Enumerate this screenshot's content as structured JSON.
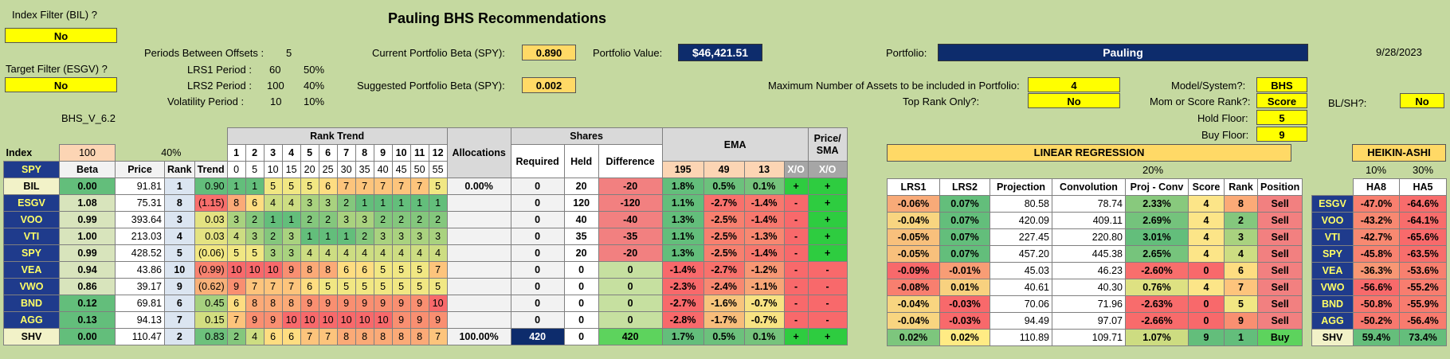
{
  "title": "Pauling BHS Recommendations",
  "date": "9/28/2023",
  "index_filter": {
    "label": "Index Filter (BIL) ?",
    "value": "No"
  },
  "target_filter": {
    "label": "Target Filter (ESGV) ?",
    "value": "No"
  },
  "version": "BHS_V_6.2",
  "periods": {
    "offsets_label": "Periods Between Offsets :",
    "offsets_value": "5",
    "lrs1_label": "LRS1 Period :",
    "lrs1_value": "60",
    "lrs1_pct": "50%",
    "lrs2_label": "LRS2 Period :",
    "lrs2_value": "100",
    "lrs2_pct": "40%",
    "vol_label": "Volatility Period :",
    "vol_value": "10",
    "vol_pct": "10%"
  },
  "current_beta": {
    "label": "Current Portfolio Beta (SPY):",
    "value": "0.890"
  },
  "suggested_beta": {
    "label": "Suggested Portfolio Beta (SPY):",
    "value": "0.002"
  },
  "portfolio_value": {
    "label": "Portfolio Value:",
    "value": "$46,421.51"
  },
  "portfolio": {
    "label": "Portfolio:",
    "value": "Pauling"
  },
  "max_assets": {
    "label": "Maximum Number of Assets to be included in Portfolio:",
    "value": "4"
  },
  "top_rank": {
    "label": "Top Rank Only?:",
    "value": "No"
  },
  "model": {
    "label": "Model/System?:",
    "value": "BHS"
  },
  "mom_score": {
    "label": "Mom or Score Rank?:",
    "value": "Score"
  },
  "hold_floor": {
    "label": "Hold Floor:",
    "value": "5"
  },
  "buy_floor": {
    "label": "Buy Floor:",
    "value": "9"
  },
  "blsh": {
    "label": "BL/SH?:",
    "value": "No"
  },
  "index_row": {
    "label": "Index",
    "value": "100",
    "pct": "40%"
  },
  "main_table": {
    "rank_trend_title": "Rank Trend",
    "trend_nums": [
      "1",
      "2",
      "3",
      "4",
      "5",
      "6",
      "7",
      "8",
      "9",
      "10",
      "11",
      "12"
    ],
    "trend_offsets": [
      "0",
      "5",
      "10",
      "15",
      "20",
      "25",
      "30",
      "35",
      "40",
      "45",
      "50",
      "55"
    ],
    "allocations_header": "Allocations",
    "shares_header": "Shares",
    "ema_header": "EMA",
    "price_sma_header": "Price/ SMA",
    "col_headers": [
      "SPY",
      "Beta",
      "Price",
      "Rank",
      "Trend"
    ],
    "shares_cols": [
      "Required",
      "Held",
      "Difference"
    ],
    "ema_cols": [
      "195",
      "49",
      "13",
      "X/O"
    ],
    "sma_col": "X/O",
    "rows": [
      {
        "ticker": "BIL",
        "beta": "0.00",
        "price": "91.81",
        "rank": "1",
        "trend": "0.90",
        "rt": [
          "1",
          "1",
          "5",
          "5",
          "5",
          "6",
          "7",
          "7",
          "7",
          "7",
          "7",
          "5"
        ],
        "alloc": "0.00%",
        "req": "0",
        "held": "20",
        "diff": "-20",
        "e195": "1.8%",
        "e49": "0.5%",
        "e13": "0.1%",
        "xo": "+",
        "sma": "+"
      },
      {
        "ticker": "ESGV",
        "beta": "1.08",
        "price": "75.31",
        "rank": "8",
        "trend": "(1.15)",
        "rt": [
          "8",
          "6",
          "4",
          "4",
          "3",
          "3",
          "2",
          "1",
          "1",
          "1",
          "1",
          "1"
        ],
        "alloc": "",
        "req": "0",
        "held": "120",
        "diff": "-120",
        "e195": "1.1%",
        "e49": "-2.7%",
        "e13": "-1.4%",
        "xo": "-",
        "sma": "+"
      },
      {
        "ticker": "VOO",
        "beta": "0.99",
        "price": "393.64",
        "rank": "3",
        "trend": "0.03",
        "rt": [
          "3",
          "2",
          "1",
          "1",
          "2",
          "2",
          "3",
          "3",
          "2",
          "2",
          "2",
          "2"
        ],
        "alloc": "",
        "req": "0",
        "held": "40",
        "diff": "-40",
        "e195": "1.3%",
        "e49": "-2.5%",
        "e13": "-1.4%",
        "xo": "-",
        "sma": "+"
      },
      {
        "ticker": "VTI",
        "beta": "1.00",
        "price": "213.03",
        "rank": "4",
        "trend": "0.03",
        "rt": [
          "4",
          "3",
          "2",
          "3",
          "1",
          "1",
          "1",
          "2",
          "3",
          "3",
          "3",
          "3"
        ],
        "alloc": "",
        "req": "0",
        "held": "35",
        "diff": "-35",
        "e195": "1.1%",
        "e49": "-2.5%",
        "e13": "-1.3%",
        "xo": "-",
        "sma": "+"
      },
      {
        "ticker": "SPY",
        "beta": "0.99",
        "price": "428.52",
        "rank": "5",
        "trend": "(0.06)",
        "rt": [
          "5",
          "5",
          "3",
          "3",
          "4",
          "4",
          "4",
          "4",
          "4",
          "4",
          "4",
          "4"
        ],
        "alloc": "",
        "req": "0",
        "held": "20",
        "diff": "-20",
        "e195": "1.3%",
        "e49": "-2.5%",
        "e13": "-1.4%",
        "xo": "-",
        "sma": "+"
      },
      {
        "ticker": "VEA",
        "beta": "0.94",
        "price": "43.86",
        "rank": "10",
        "trend": "(0.99)",
        "rt": [
          "10",
          "10",
          "10",
          "9",
          "8",
          "8",
          "6",
          "6",
          "5",
          "5",
          "5",
          "7"
        ],
        "alloc": "",
        "req": "0",
        "held": "0",
        "diff": "0",
        "e195": "-1.4%",
        "e49": "-2.7%",
        "e13": "-1.2%",
        "xo": "-",
        "sma": "-"
      },
      {
        "ticker": "VWO",
        "beta": "0.86",
        "price": "39.17",
        "rank": "9",
        "trend": "(0.62)",
        "rt": [
          "9",
          "7",
          "7",
          "7",
          "6",
          "5",
          "5",
          "5",
          "5",
          "5",
          "5",
          "5"
        ],
        "alloc": "",
        "req": "0",
        "held": "0",
        "diff": "0",
        "e195": "-2.3%",
        "e49": "-2.4%",
        "e13": "-1.1%",
        "xo": "-",
        "sma": "-"
      },
      {
        "ticker": "BND",
        "beta": "0.12",
        "price": "69.81",
        "rank": "6",
        "trend": "0.45",
        "rt": [
          "6",
          "8",
          "8",
          "8",
          "9",
          "9",
          "9",
          "9",
          "9",
          "9",
          "9",
          "10"
        ],
        "alloc": "",
        "req": "0",
        "held": "0",
        "diff": "0",
        "e195": "-2.7%",
        "e49": "-1.6%",
        "e13": "-0.7%",
        "xo": "-",
        "sma": "-"
      },
      {
        "ticker": "AGG",
        "beta": "0.13",
        "price": "94.13",
        "rank": "7",
        "trend": "0.15",
        "rt": [
          "7",
          "9",
          "9",
          "10",
          "10",
          "10",
          "10",
          "10",
          "10",
          "9",
          "9",
          "9"
        ],
        "alloc": "",
        "req": "0",
        "held": "0",
        "diff": "0",
        "e195": "-2.8%",
        "e49": "-1.7%",
        "e13": "-0.7%",
        "xo": "-",
        "sma": "-"
      },
      {
        "ticker": "SHV",
        "beta": "0.00",
        "price": "110.47",
        "rank": "2",
        "trend": "0.83",
        "rt": [
          "2",
          "4",
          "6",
          "6",
          "7",
          "7",
          "8",
          "8",
          "8",
          "8",
          "8",
          "7"
        ],
        "alloc": "100.00%",
        "req": "420",
        "held": "0",
        "diff": "420",
        "e195": "1.7%",
        "e49": "0.5%",
        "e13": "0.1%",
        "xo": "+",
        "sma": "+"
      }
    ]
  },
  "lr_table": {
    "title": "LINEAR REGRESSION",
    "pct": "20%",
    "cols": [
      "LRS1",
      "LRS2",
      "Projection",
      "Convolution",
      "Proj - Conv",
      "Score",
      "Rank",
      "Position"
    ],
    "rows": [
      {
        "lrs1": "-0.06%",
        "lrs2": "0.07%",
        "proj": "80.58",
        "conv": "78.74",
        "pc": "2.33%",
        "score": "4",
        "rank": "8",
        "pos": "Sell"
      },
      {
        "lrs1": "-0.04%",
        "lrs2": "0.07%",
        "proj": "420.09",
        "conv": "409.11",
        "pc": "2.69%",
        "score": "4",
        "rank": "2",
        "pos": "Sell"
      },
      {
        "lrs1": "-0.05%",
        "lrs2": "0.07%",
        "proj": "227.45",
        "conv": "220.80",
        "pc": "3.01%",
        "score": "4",
        "rank": "3",
        "pos": "Sell"
      },
      {
        "lrs1": "-0.05%",
        "lrs2": "0.07%",
        "proj": "457.20",
        "conv": "445.38",
        "pc": "2.65%",
        "score": "4",
        "rank": "4",
        "pos": "Sell"
      },
      {
        "lrs1": "-0.09%",
        "lrs2": "-0.01%",
        "proj": "45.03",
        "conv": "46.23",
        "pc": "-2.60%",
        "score": "0",
        "rank": "6",
        "pos": "Sell"
      },
      {
        "lrs1": "-0.08%",
        "lrs2": "0.01%",
        "proj": "40.61",
        "conv": "40.30",
        "pc": "0.76%",
        "score": "4",
        "rank": "7",
        "pos": "Sell"
      },
      {
        "lrs1": "-0.04%",
        "lrs2": "-0.03%",
        "proj": "70.06",
        "conv": "71.96",
        "pc": "-2.63%",
        "score": "0",
        "rank": "5",
        "pos": "Sell"
      },
      {
        "lrs1": "-0.04%",
        "lrs2": "-0.03%",
        "proj": "94.49",
        "conv": "97.07",
        "pc": "-2.66%",
        "score": "0",
        "rank": "9",
        "pos": "Sell"
      },
      {
        "lrs1": "0.02%",
        "lrs2": "0.02%",
        "proj": "110.89",
        "conv": "109.71",
        "pc": "1.07%",
        "score": "9",
        "rank": "1",
        "pos": "Buy"
      }
    ]
  },
  "ha_table": {
    "title": "HEIKIN-ASHI",
    "pcts": [
      "10%",
      "30%"
    ],
    "cols": [
      "HA8",
      "HA5"
    ],
    "rows": [
      {
        "ticker": "ESGV",
        "ha8": "-47.0%",
        "ha5": "-64.6%"
      },
      {
        "ticker": "VOO",
        "ha8": "-43.2%",
        "ha5": "-64.1%"
      },
      {
        "ticker": "VTI",
        "ha8": "-42.7%",
        "ha5": "-65.6%"
      },
      {
        "ticker": "SPY",
        "ha8": "-45.8%",
        "ha5": "-63.5%"
      },
      {
        "ticker": "VEA",
        "ha8": "-36.3%",
        "ha5": "-53.6%"
      },
      {
        "ticker": "VWO",
        "ha8": "-56.6%",
        "ha5": "-55.2%"
      },
      {
        "ticker": "BND",
        "ha8": "-50.8%",
        "ha5": "-55.9%"
      },
      {
        "ticker": "AGG",
        "ha8": "-50.2%",
        "ha5": "-56.4%"
      },
      {
        "ticker": "SHV",
        "ha8": "59.4%",
        "ha5": "73.4%"
      }
    ]
  },
  "colors": {
    "background": "#c5d9a0",
    "ticker_bg": "#1f3b8c",
    "ticker_fg": "#ffff66",
    "sell": "#f28080",
    "buy": "#5dd35d",
    "input_yellow": "#ffff00"
  }
}
